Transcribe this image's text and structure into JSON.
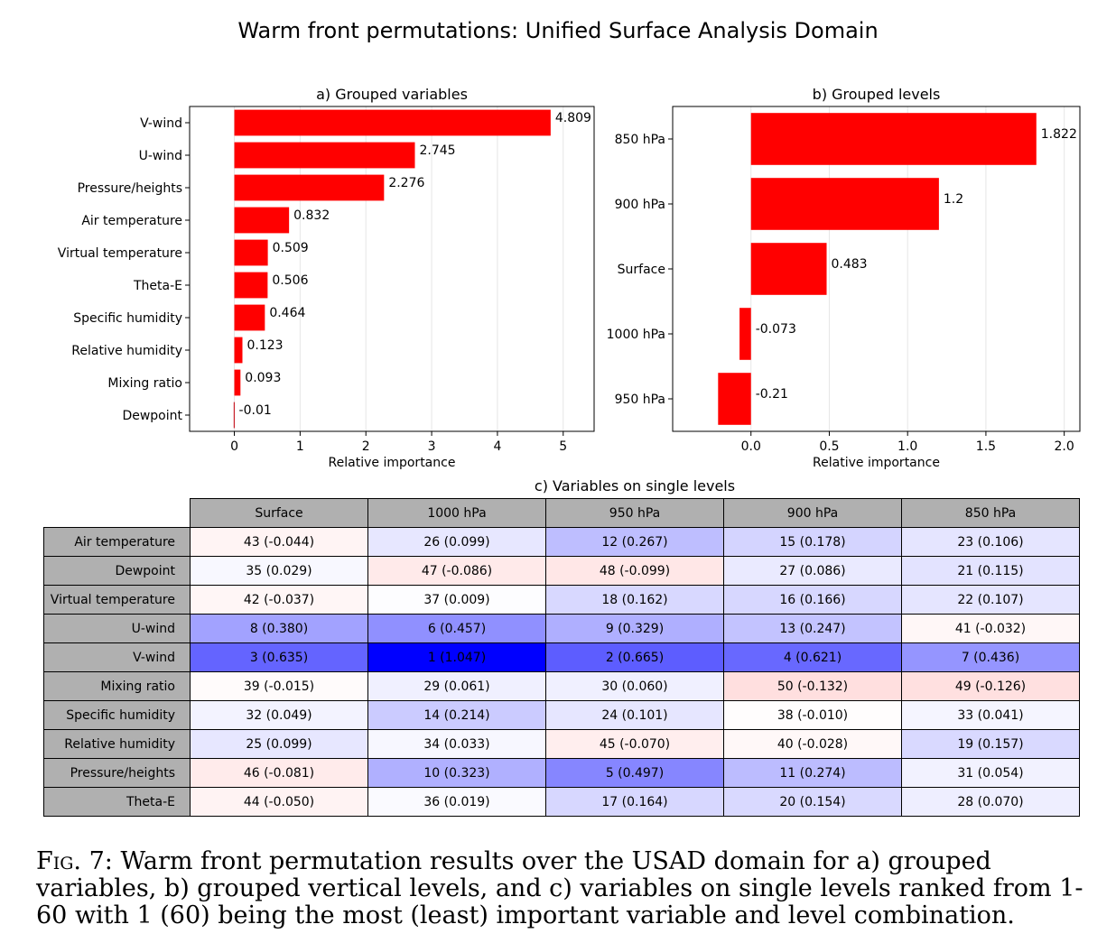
{
  "main_title": "Warm front permutations: Unified Surface Analysis Domain",
  "colors": {
    "bar": "#ff0000",
    "bar_negative_small": "#c8202a",
    "header_gray": "#b0b0b0"
  },
  "chart_data": [
    {
      "id": "a",
      "type": "bar",
      "orientation": "horizontal",
      "title": "a) Grouped variables",
      "xlabel": "Relative importance",
      "categories": [
        "V-wind",
        "U-wind",
        "Pressure/heights",
        "Air temperature",
        "Virtual temperature",
        "Theta-E",
        "Specific humidity",
        "Relative humidity",
        "Mixing ratio",
        "Dewpoint"
      ],
      "values": [
        4.809,
        2.745,
        2.276,
        0.832,
        0.509,
        0.506,
        0.464,
        0.123,
        0.093,
        -0.01
      ],
      "value_labels": [
        "4.809",
        "2.745",
        "2.276",
        "0.832",
        "0.509",
        "0.506",
        "0.464",
        "0.123",
        "0.093",
        "-0.01"
      ],
      "xticks": [
        "0",
        "1",
        "2",
        "3",
        "4",
        "5"
      ],
      "xlim": [
        -0.68,
        5.47
      ],
      "grid": "vertical"
    },
    {
      "id": "b",
      "type": "bar",
      "orientation": "horizontal",
      "title": "b) Grouped levels",
      "xlabel": "Relative importance",
      "categories": [
        "850 hPa",
        "900 hPa",
        "Surface",
        "1000 hPa",
        "950 hPa"
      ],
      "values": [
        1.822,
        1.2,
        0.483,
        -0.073,
        -0.21
      ],
      "value_labels": [
        "1.822",
        "1.2",
        "0.483",
        "-0.073",
        "-0.21"
      ],
      "xticks": [
        "0.0",
        "0.5",
        "1.0",
        "1.5",
        "2.0"
      ],
      "xlim": [
        -0.5,
        2.1
      ],
      "grid": "vertical"
    },
    {
      "id": "c",
      "type": "table",
      "title": "c) Variables on single levels",
      "columns": [
        "Surface",
        "1000 hPa",
        "950 hPa",
        "900 hPa",
        "850 hPa"
      ],
      "rows": [
        {
          "label": "Air temperature",
          "cells": [
            {
              "rank": 43,
              "value": -0.044,
              "text": "43 (-0.044)"
            },
            {
              "rank": 26,
              "value": 0.099,
              "text": "26 (0.099)"
            },
            {
              "rank": 12,
              "value": 0.267,
              "text": "12 (0.267)"
            },
            {
              "rank": 15,
              "value": 0.178,
              "text": "15 (0.178)"
            },
            {
              "rank": 23,
              "value": 0.106,
              "text": "23 (0.106)"
            }
          ]
        },
        {
          "label": "Dewpoint",
          "cells": [
            {
              "rank": 35,
              "value": 0.029,
              "text": "35 (0.029)"
            },
            {
              "rank": 47,
              "value": -0.086,
              "text": "47 (-0.086)"
            },
            {
              "rank": 48,
              "value": -0.099,
              "text": "48 (-0.099)"
            },
            {
              "rank": 27,
              "value": 0.086,
              "text": "27 (0.086)"
            },
            {
              "rank": 21,
              "value": 0.115,
              "text": "21 (0.115)"
            }
          ]
        },
        {
          "label": "Virtual temperature",
          "cells": [
            {
              "rank": 42,
              "value": -0.037,
              "text": "42 (-0.037)"
            },
            {
              "rank": 37,
              "value": 0.009,
              "text": "37 (0.009)"
            },
            {
              "rank": 18,
              "value": 0.162,
              "text": "18 (0.162)"
            },
            {
              "rank": 16,
              "value": 0.166,
              "text": "16 (0.166)"
            },
            {
              "rank": 22,
              "value": 0.107,
              "text": "22 (0.107)"
            }
          ]
        },
        {
          "label": "U-wind",
          "cells": [
            {
              "rank": 8,
              "value": 0.38,
              "text": "8 (0.380)"
            },
            {
              "rank": 6,
              "value": 0.457,
              "text": "6 (0.457)"
            },
            {
              "rank": 9,
              "value": 0.329,
              "text": "9 (0.329)"
            },
            {
              "rank": 13,
              "value": 0.247,
              "text": "13 (0.247)"
            },
            {
              "rank": 41,
              "value": -0.032,
              "text": "41 (-0.032)"
            }
          ]
        },
        {
          "label": "V-wind",
          "cells": [
            {
              "rank": 3,
              "value": 0.635,
              "text": "3 (0.635)"
            },
            {
              "rank": 1,
              "value": 1.047,
              "text": "1 (1.047)"
            },
            {
              "rank": 2,
              "value": 0.665,
              "text": "2 (0.665)"
            },
            {
              "rank": 4,
              "value": 0.621,
              "text": "4 (0.621)"
            },
            {
              "rank": 7,
              "value": 0.436,
              "text": "7 (0.436)"
            }
          ]
        },
        {
          "label": "Mixing ratio",
          "cells": [
            {
              "rank": 39,
              "value": -0.015,
              "text": "39 (-0.015)"
            },
            {
              "rank": 29,
              "value": 0.061,
              "text": "29 (0.061)"
            },
            {
              "rank": 30,
              "value": 0.06,
              "text": "30 (0.060)"
            },
            {
              "rank": 50,
              "value": -0.132,
              "text": "50 (-0.132)"
            },
            {
              "rank": 49,
              "value": -0.126,
              "text": "49 (-0.126)"
            }
          ]
        },
        {
          "label": "Specific humidity",
          "cells": [
            {
              "rank": 32,
              "value": 0.049,
              "text": "32 (0.049)"
            },
            {
              "rank": 14,
              "value": 0.214,
              "text": "14 (0.214)"
            },
            {
              "rank": 24,
              "value": 0.101,
              "text": "24 (0.101)"
            },
            {
              "rank": 38,
              "value": -0.01,
              "text": "38 (-0.010)"
            },
            {
              "rank": 33,
              "value": 0.041,
              "text": "33 (0.041)"
            }
          ]
        },
        {
          "label": "Relative humidity",
          "cells": [
            {
              "rank": 25,
              "value": 0.099,
              "text": "25 (0.099)"
            },
            {
              "rank": 34,
              "value": 0.033,
              "text": "34 (0.033)"
            },
            {
              "rank": 45,
              "value": -0.07,
              "text": "45 (-0.070)"
            },
            {
              "rank": 40,
              "value": -0.028,
              "text": "40 (-0.028)"
            },
            {
              "rank": 19,
              "value": 0.157,
              "text": "19 (0.157)"
            }
          ]
        },
        {
          "label": "Pressure/heights",
          "cells": [
            {
              "rank": 46,
              "value": -0.081,
              "text": "46 (-0.081)"
            },
            {
              "rank": 10,
              "value": 0.323,
              "text": "10 (0.323)"
            },
            {
              "rank": 5,
              "value": 0.497,
              "text": "5 (0.497)"
            },
            {
              "rank": 11,
              "value": 0.274,
              "text": "11 (0.274)"
            },
            {
              "rank": 31,
              "value": 0.054,
              "text": "31 (0.054)"
            }
          ]
        },
        {
          "label": "Theta-E",
          "cells": [
            {
              "rank": 44,
              "value": -0.05,
              "text": "44 (-0.050)"
            },
            {
              "rank": 36,
              "value": 0.019,
              "text": "36 (0.019)"
            },
            {
              "rank": 17,
              "value": 0.164,
              "text": "17 (0.164)"
            },
            {
              "rank": 20,
              "value": 0.154,
              "text": "20 (0.154)"
            },
            {
              "rank": 28,
              "value": 0.07,
              "text": "28 (0.070)"
            }
          ]
        }
      ],
      "colormap": "bwr_reversed",
      "color_range": [
        -1.047,
        1.047
      ]
    }
  ],
  "caption": {
    "label": "Fig. 7:",
    "text": "Warm front permutation results over the USAD domain for a) grouped variables, b) grouped vertical levels, and c) variables on single levels ranked from 1-60 with 1 (60) being the most (least) important variable and level combination."
  }
}
